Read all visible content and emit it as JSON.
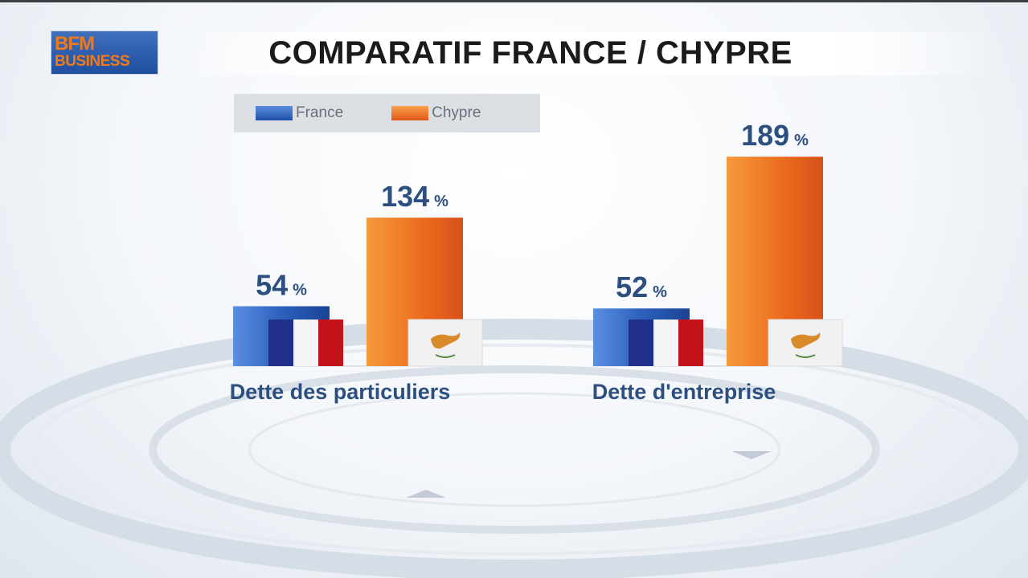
{
  "logo": {
    "line1": "BFM",
    "line2": "BUSINESS"
  },
  "title": "COMPARATIF FRANCE / CHYPRE",
  "legend": [
    {
      "label": "France",
      "color": "#2a5db8"
    },
    {
      "label": "Chypre",
      "color": "#ec6a1e"
    }
  ],
  "chart_data": {
    "type": "bar",
    "categories": [
      "Dette des particuliers",
      "Dette d'entreprise"
    ],
    "series": [
      {
        "name": "France",
        "values": [
          54,
          52
        ],
        "labels": [
          "54",
          "52"
        ],
        "color": "#2a5db8"
      },
      {
        "name": "Chypre",
        "values": [
          134,
          189
        ],
        "labels": [
          "134",
          "189"
        ],
        "color": "#ec6a1e"
      }
    ],
    "unit": "%",
    "legend_position": "top-left",
    "grid": false
  }
}
